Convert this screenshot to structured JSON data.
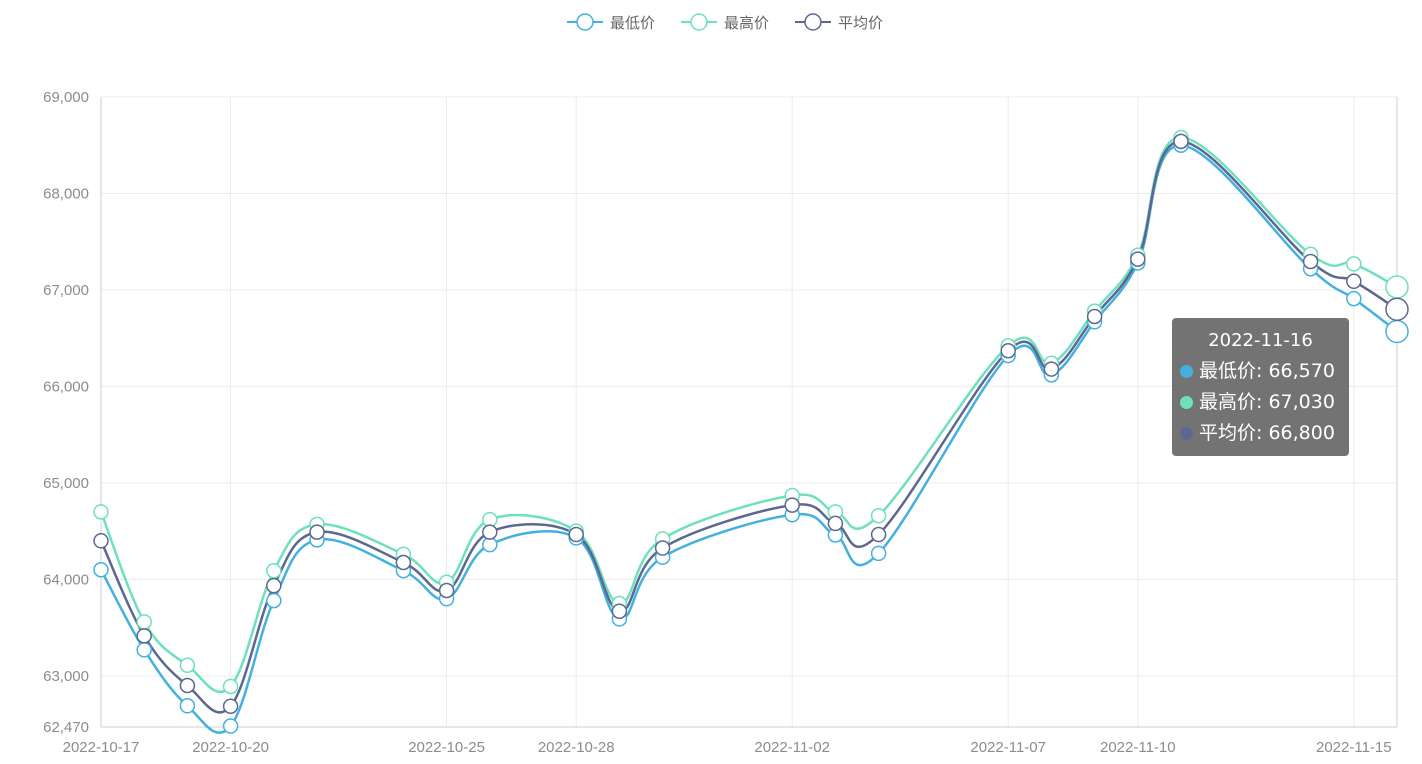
{
  "chart_data": {
    "type": "line",
    "x": [
      "2022-10-17",
      "2022-10-18",
      "2022-10-19",
      "2022-10-20",
      "2022-10-21",
      "2022-10-22",
      "2022-10-24",
      "2022-10-25",
      "2022-10-26",
      "2022-10-28",
      "2022-10-29",
      "2022-10-30",
      "2022-11-02",
      "2022-11-03",
      "2022-11-04",
      "2022-11-07",
      "2022-11-08",
      "2022-11-09",
      "2022-11-10",
      "2022-11-11",
      "2022-11-14",
      "2022-11-15",
      "2022-11-16"
    ],
    "xticks": [
      "2022-10-17",
      "2022-10-20",
      "2022-10-25",
      "2022-10-28",
      "2022-11-02",
      "2022-11-07",
      "2022-11-10",
      "2022-11-15"
    ],
    "yticks": [
      "62,470",
      "63,000",
      "64,000",
      "65,000",
      "66,000",
      "67,000",
      "68,000",
      "69,000"
    ],
    "ylim": [
      62470,
      69000
    ],
    "smooth": true,
    "legend_position": "top-center",
    "series": [
      {
        "name": "最低价",
        "color": "#43b1e0",
        "values": [
          64100,
          63270,
          62690,
          62480,
          63780,
          64410,
          64090,
          63800,
          64360,
          64430,
          63590,
          64230,
          64670,
          64460,
          64270,
          66320,
          66120,
          66670,
          67280,
          68500,
          67220,
          66910,
          66570
        ]
      },
      {
        "name": "最高价",
        "color": "#6ee0bd",
        "values": [
          64700,
          63560,
          63110,
          62890,
          64090,
          64570,
          64260,
          63970,
          64620,
          64500,
          63750,
          64420,
          64870,
          64700,
          64660,
          66420,
          66240,
          66780,
          67360,
          68580,
          67370,
          67270,
          67030
        ]
      },
      {
        "name": "平均价",
        "color": "#5c6891",
        "values": [
          64400,
          63415,
          62900,
          62685,
          63935,
          64490,
          64175,
          63885,
          64490,
          64465,
          63670,
          64325,
          64770,
          64580,
          64465,
          66370,
          66180,
          66725,
          67320,
          68540,
          67295,
          67090,
          66800
        ]
      }
    ]
  },
  "legend": {
    "items": [
      "最低价",
      "最高价",
      "平均价"
    ]
  },
  "tooltip": {
    "title": "2022-11-16",
    "rows": [
      {
        "label": "最低价: 66,570",
        "color": "#43b1e0"
      },
      {
        "label": "最高价: 67,030",
        "color": "#6ee0bd"
      },
      {
        "label": "平均价: 66,800",
        "color": "#5c6891"
      }
    ]
  }
}
